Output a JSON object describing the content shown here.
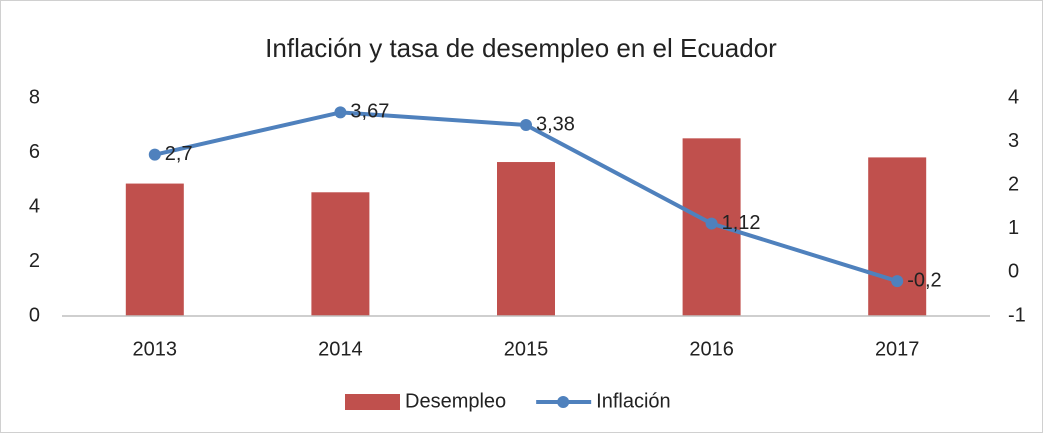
{
  "chart_data": {
    "type": "bar",
    "title": "Inflación y tasa de desempleo en el Ecuador",
    "categories": [
      "2013",
      "2014",
      "2015",
      "2016",
      "2017"
    ],
    "series": [
      {
        "name": "Desempleo",
        "type": "bar",
        "color": "#c0504d",
        "values": [
          4.86,
          4.54,
          5.65,
          6.52,
          5.82
        ]
      },
      {
        "name": "Inflación",
        "type": "line",
        "axis": "y2",
        "color": "#4f81bd",
        "values": [
          2.7,
          3.67,
          3.38,
          1.12,
          -0.2
        ],
        "value_labels": [
          "2,7",
          "3,67",
          "3,38",
          "1,12",
          "-0,2"
        ]
      }
    ],
    "ylim": [
      0,
      8
    ],
    "yticks": [
      0,
      2,
      4,
      6,
      8
    ],
    "y2lim": [
      -1,
      4
    ],
    "y2ticks": [
      -1,
      0,
      1,
      2,
      3,
      4
    ],
    "grid": false,
    "legend": "bottom"
  }
}
